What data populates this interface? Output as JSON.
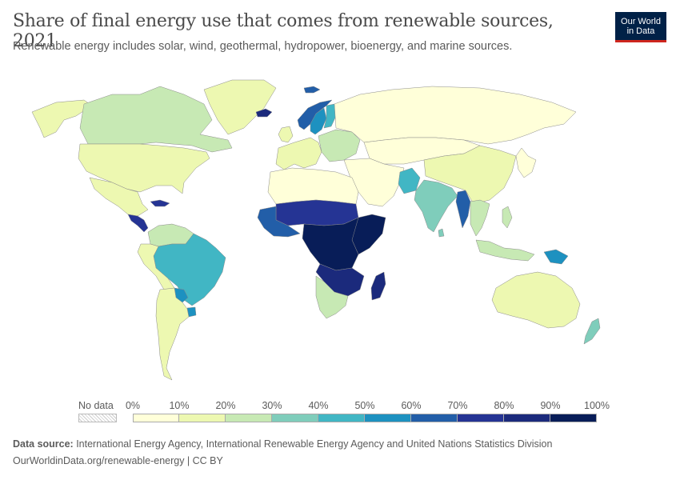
{
  "header": {
    "title": "Share of final energy use that comes from renewable sources, 2021",
    "subtitle": "Renewable energy includes solar, wind, geothermal, hydropower, bioenergy, and marine sources."
  },
  "logo": {
    "line1": "Our World",
    "line2": "in Data",
    "bg_color": "#002147",
    "accent_color": "#ce261e"
  },
  "legend": {
    "no_data_label": "No data",
    "ticks": [
      "0%",
      "10%",
      "20%",
      "30%",
      "40%",
      "50%",
      "60%",
      "70%",
      "80%",
      "90%",
      "100%"
    ],
    "bins": [
      "#ffffd9",
      "#edf8b1",
      "#c7e9b4",
      "#7fcdbb",
      "#41b6c4",
      "#1d91c0",
      "#225ea8",
      "#253494",
      "#1b2a7c",
      "#081d58"
    ]
  },
  "footer": {
    "source_label": "Data source:",
    "source_text": " International Energy Agency, International Renewable Energy Agency and United Nations Statistics Division",
    "url_text": "OurWorldinData.org/renewable-energy | CC BY"
  },
  "map_data": {
    "year": 2021,
    "unit": "%",
    "regions": [
      {
        "id": "north-america",
        "bin": 1
      },
      {
        "id": "canada",
        "bin": 2
      },
      {
        "id": "usa",
        "bin": 1
      },
      {
        "id": "mexico",
        "bin": 1
      },
      {
        "id": "greenland",
        "bin": 1
      },
      {
        "id": "central-america",
        "bin": 7
      },
      {
        "id": "colombia-venezuela",
        "bin": 2
      },
      {
        "id": "brazil",
        "bin": 4
      },
      {
        "id": "peru-bolivia",
        "bin": 1
      },
      {
        "id": "paraguay",
        "bin": 5
      },
      {
        "id": "uruguay",
        "bin": 5
      },
      {
        "id": "argentina-chile",
        "bin": 1
      },
      {
        "id": "iceland",
        "bin": 8
      },
      {
        "id": "norway",
        "bin": 6
      },
      {
        "id": "sweden",
        "bin": 5
      },
      {
        "id": "finland",
        "bin": 4
      },
      {
        "id": "uk-ireland",
        "bin": 1
      },
      {
        "id": "western-europe",
        "bin": 1
      },
      {
        "id": "eastern-europe",
        "bin": 2
      },
      {
        "id": "russia",
        "bin": 0
      },
      {
        "id": "north-africa",
        "bin": 0
      },
      {
        "id": "sahel",
        "bin": 7
      },
      {
        "id": "west-africa",
        "bin": 6
      },
      {
        "id": "east-africa",
        "bin": 9
      },
      {
        "id": "central-africa",
        "bin": 9
      },
      {
        "id": "southern-central-africa",
        "bin": 8
      },
      {
        "id": "southern-africa",
        "bin": 2
      },
      {
        "id": "madagascar",
        "bin": 8
      },
      {
        "id": "middle-east",
        "bin": 0
      },
      {
        "id": "pakistan",
        "bin": 4
      },
      {
        "id": "india",
        "bin": 3
      },
      {
        "id": "myanmar",
        "bin": 6
      },
      {
        "id": "southeast-asia",
        "bin": 2
      },
      {
        "id": "china",
        "bin": 1
      },
      {
        "id": "mongolia-kazakhstan",
        "bin": 0
      },
      {
        "id": "japan-korea",
        "bin": 0
      },
      {
        "id": "indonesia",
        "bin": 2
      },
      {
        "id": "papua-new-guinea",
        "bin": 5
      },
      {
        "id": "australia",
        "bin": 1
      },
      {
        "id": "new-zealand",
        "bin": 3
      }
    ]
  }
}
